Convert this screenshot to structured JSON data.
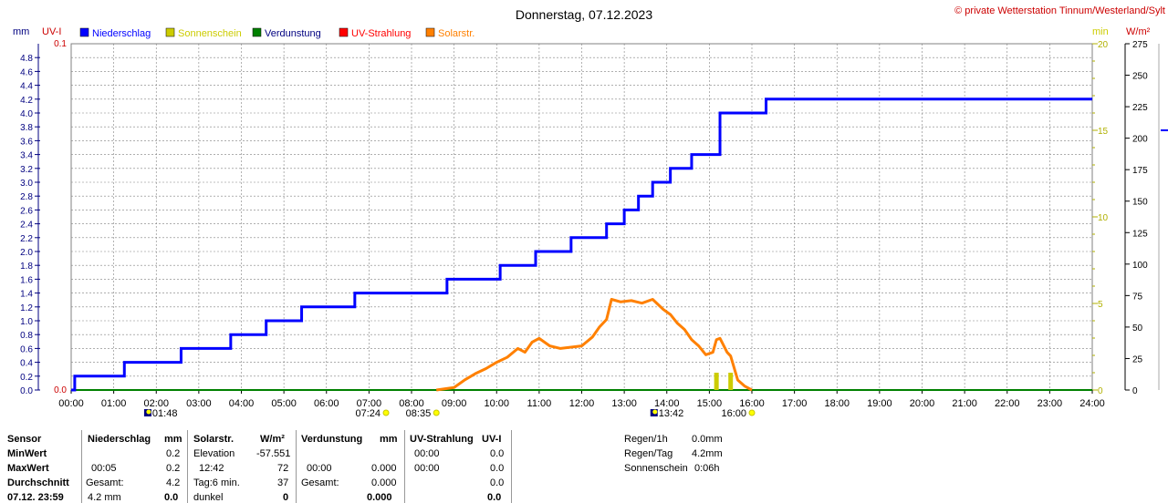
{
  "title": "Donnerstag, 07.12.2023",
  "copyright": "© private Wetterstation Tinnum/Westerland/Sylt",
  "colors": {
    "rain": "#0000ff",
    "sun": "#cccc00",
    "evap": "#008000",
    "uv": "#ff0000",
    "solar": "#ff8000",
    "grid": "#808080"
  },
  "axes": {
    "mm_unit": "mm",
    "uv_unit": "UV-I",
    "min_unit": "min",
    "wm2_unit": "W/m²",
    "uv_top": "0.1",
    "uv_bottom": "0.0",
    "mm_ticks": [
      "0.0",
      "0.2",
      "0.4",
      "0.6",
      "0.8",
      "1.0",
      "1.2",
      "1.4",
      "1.6",
      "1.8",
      "2.0",
      "2.2",
      "2.4",
      "2.6",
      "2.8",
      "3.0",
      "3.2",
      "3.4",
      "3.6",
      "3.8",
      "4.0",
      "4.2",
      "4.4",
      "4.6",
      "4.8"
    ],
    "min_ticks": [
      "0",
      "5",
      "10",
      "15",
      "20"
    ],
    "wm2_ticks": [
      "0",
      "25",
      "50",
      "75",
      "100",
      "125",
      "150",
      "175",
      "200",
      "225",
      "250",
      "275"
    ],
    "x_ticks": [
      "00:00",
      "01:00",
      "02:00",
      "03:00",
      "04:00",
      "05:00",
      "06:00",
      "07:00",
      "08:00",
      "09:00",
      "10:00",
      "11:00",
      "12:00",
      "13:00",
      "14:00",
      "15:00",
      "16:00",
      "17:00",
      "18:00",
      "19:00",
      "20:00",
      "21:00",
      "22:00",
      "23:00",
      "24:00"
    ]
  },
  "legend": [
    {
      "label": "Niederschlag",
      "color": "#0000ff",
      "text_color": "#0000ff"
    },
    {
      "label": "Sonnenschein",
      "color": "#cccc00",
      "text_color": "#cccc00"
    },
    {
      "label": "Verdunstung",
      "color": "#008000",
      "text_color": "#000080"
    },
    {
      "label": "UV-Strahlung",
      "color": "#ff0000",
      "text_color": "#ff0000"
    },
    {
      "label": "Solarstr.",
      "color": "#ff8000",
      "text_color": "#ff8000"
    }
  ],
  "markers": {
    "sunrise": "07:24",
    "moonrise": "01:48",
    "sun_start": "08:35",
    "moonset": "13:42",
    "sun_end": "16:00"
  },
  "chart_data": {
    "type": "line",
    "title": "Donnerstag, 07.12.2023",
    "x_range": [
      "00:00",
      "24:00"
    ],
    "series": [
      {
        "name": "Niederschlag",
        "unit": "mm",
        "ylim": [
          0,
          5.0
        ],
        "x": [
          "00:00",
          "00:05",
          "01:15",
          "02:35",
          "03:45",
          "04:35",
          "05:25",
          "06:40",
          "08:50",
          "10:05",
          "10:55",
          "11:45",
          "12:35",
          "13:00",
          "13:20",
          "13:40",
          "14:05",
          "14:35",
          "15:15",
          "16:20",
          "24:00"
        ],
        "values": [
          0.0,
          0.2,
          0.4,
          0.6,
          0.8,
          1.0,
          1.2,
          1.4,
          1.6,
          1.8,
          2.0,
          2.2,
          2.4,
          2.6,
          2.8,
          3.0,
          3.2,
          3.4,
          4.0,
          4.2,
          4.2
        ]
      },
      {
        "name": "Solarstr.",
        "unit": "W/m²",
        "ylim": [
          0,
          275
        ],
        "x": [
          "08:35",
          "09:00",
          "09:15",
          "09:30",
          "09:45",
          "10:00",
          "10:15",
          "10:30",
          "10:40",
          "10:50",
          "11:00",
          "11:15",
          "11:30",
          "11:45",
          "12:00",
          "12:15",
          "12:25",
          "12:35",
          "12:42",
          "12:55",
          "13:10",
          "13:25",
          "13:40",
          "13:55",
          "14:05",
          "14:15",
          "14:25",
          "14:35",
          "14:45",
          "14:55",
          "15:05",
          "15:10",
          "15:15",
          "15:25",
          "15:30",
          "15:40",
          "15:50",
          "16:00"
        ],
        "values": [
          0,
          2,
          8,
          13,
          17,
          22,
          26,
          33,
          30,
          38,
          41,
          35,
          33,
          34,
          35,
          42,
          50,
          56,
          72,
          70,
          71,
          69,
          72,
          64,
          60,
          53,
          48,
          40,
          35,
          28,
          30,
          40,
          41,
          30,
          27,
          8,
          3,
          0
        ]
      },
      {
        "name": "Sonnenschein",
        "unit": "min",
        "ylim": [
          0,
          20
        ],
        "x": [
          "15:10",
          "15:20",
          "15:30"
        ],
        "values": [
          1,
          0,
          1
        ]
      }
    ]
  },
  "table": {
    "headers": {
      "sensor": "Sensor",
      "rain": "Niederschlag",
      "mm": "mm",
      "solar": "Solarstr.",
      "wm2": "W/m²",
      "evap": "Verdunstung",
      "evap_mm": "mm",
      "uv": "UV-Strahlung",
      "uvi": "UV-I"
    },
    "rows": {
      "min": "MinWert",
      "max": "MaxWert",
      "avg": "Durchschnitt",
      "date": "07.12. 23:59"
    },
    "rain": {
      "min_val": "0.2",
      "max_time": "00:05",
      "max_val": "0.2",
      "total_label": "Gesamt:",
      "total": "4.2",
      "last_label": "4.2 mm",
      "last_val": "0.0"
    },
    "solar": {
      "elev_label": "Elevation",
      "elev": "-57.551",
      "max_time": "12:42",
      "max_val": "72",
      "tag_label": "Tag:6 min.",
      "tag_val": "37",
      "dark_label": "dunkel",
      "dark_val": "0"
    },
    "evap": {
      "max_time": "00:00",
      "max_val": "0.000",
      "total_label": "Gesamt:",
      "total": "0.000",
      "last_val": "0.000"
    },
    "uv": {
      "min_time": "00:00",
      "min_val": "0.0",
      "max_time": "00:00",
      "max_val": "0.0",
      "avg_val": "0.0",
      "last_val": "0.0"
    },
    "stats": {
      "regen1h_label": "Regen/1h",
      "regen1h": "0.0mm",
      "regentag_label": "Regen/Tag",
      "regentag": "4.2mm",
      "sonne_label": "Sonnenschein",
      "sonne": "0:06h"
    }
  }
}
